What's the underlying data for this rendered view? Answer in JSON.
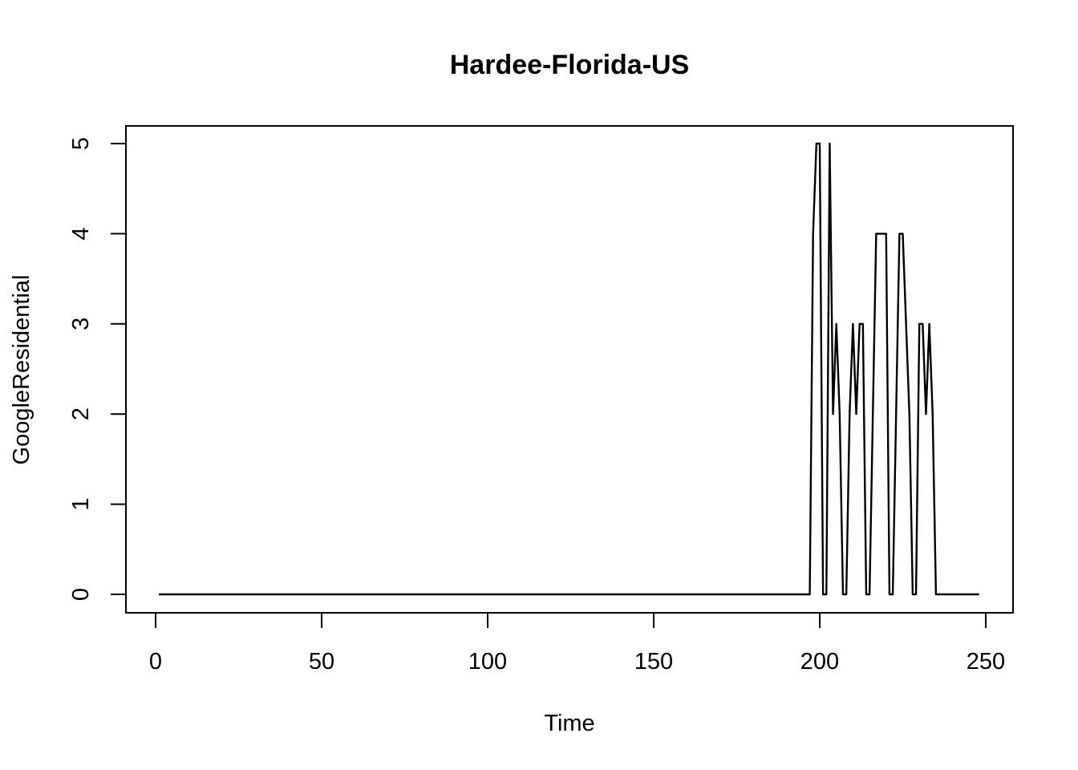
{
  "chart_data": {
    "type": "line",
    "title": "Hardee-Florida-US",
    "xlabel": "Time",
    "ylabel": "GoogleResidential",
    "xlim": [
      1,
      248
    ],
    "ylim": [
      0,
      5
    ],
    "x_ticks": [
      0,
      50,
      100,
      150,
      200,
      250
    ],
    "y_ticks": [
      0,
      1,
      2,
      3,
      4,
      5
    ],
    "x_tick_labels": [
      "0",
      "50",
      "100",
      "150",
      "200",
      "250"
    ],
    "y_tick_labels": [
      "0",
      "1",
      "2",
      "3",
      "4",
      "5"
    ],
    "grid": false,
    "legend": "none",
    "line_color": "#000000",
    "series": [
      {
        "points": [
          [
            1,
            0
          ],
          [
            197,
            0
          ],
          [
            198,
            4
          ],
          [
            199,
            5
          ],
          [
            200,
            5
          ],
          [
            201,
            0
          ],
          [
            202,
            0
          ],
          [
            203,
            5
          ],
          [
            204,
            2
          ],
          [
            205,
            3
          ],
          [
            206,
            2
          ],
          [
            207,
            0
          ],
          [
            208,
            0
          ],
          [
            209,
            2
          ],
          [
            210,
            3
          ],
          [
            211,
            2
          ],
          [
            212,
            3
          ],
          [
            213,
            3
          ],
          [
            214,
            0
          ],
          [
            215,
            0
          ],
          [
            216,
            2
          ],
          [
            217,
            4
          ],
          [
            218,
            4
          ],
          [
            219,
            4
          ],
          [
            220,
            4
          ],
          [
            221,
            0
          ],
          [
            222,
            0
          ],
          [
            223,
            2
          ],
          [
            224,
            4
          ],
          [
            225,
            4
          ],
          [
            226,
            3
          ],
          [
            227,
            2
          ],
          [
            228,
            0
          ],
          [
            229,
            0
          ],
          [
            230,
            3
          ],
          [
            231,
            3
          ],
          [
            232,
            2
          ],
          [
            233,
            3
          ],
          [
            234,
            2
          ],
          [
            235,
            0
          ],
          [
            248,
            0
          ]
        ]
      }
    ]
  }
}
